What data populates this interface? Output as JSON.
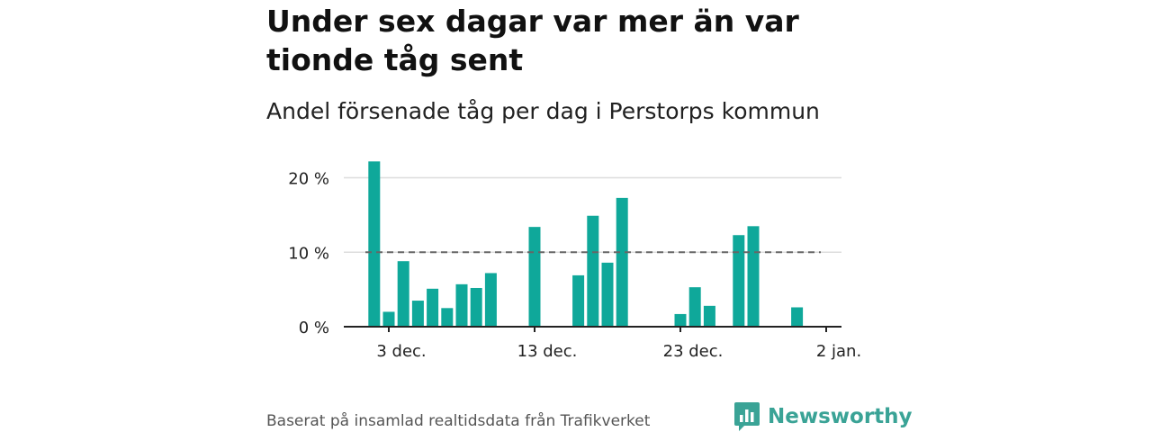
{
  "header": {
    "title": "Under sex dagar var mer än var tionde tåg sent",
    "subtitle": "Andel försenade tåg per dag i Perstorps kommun"
  },
  "footer": {
    "source": "Baserat på insamlad realtidsdata från Trafikverket",
    "brand": "Newsworthy"
  },
  "colors": {
    "bar": "#0fa89a",
    "reference_line": "#666666",
    "grid": "#dddddd",
    "brand": "#3aa396"
  },
  "icons": {
    "brand_logo": "chat-bubble-bar-chart-icon"
  },
  "chart_data": {
    "type": "bar",
    "x_unit": "day",
    "x": [
      "2023-12-02",
      "2023-12-03",
      "2023-12-04",
      "2023-12-05",
      "2023-12-06",
      "2023-12-07",
      "2023-12-08",
      "2023-12-09",
      "2023-12-10",
      "2023-12-11",
      "2023-12-12",
      "2023-12-13",
      "2023-12-14",
      "2023-12-15",
      "2023-12-16",
      "2023-12-17",
      "2023-12-18",
      "2023-12-19",
      "2023-12-20",
      "2023-12-21",
      "2023-12-22",
      "2023-12-23",
      "2023-12-24",
      "2023-12-25",
      "2023-12-26",
      "2023-12-27",
      "2023-12-28",
      "2023-12-29",
      "2023-12-30",
      "2023-12-31"
    ],
    "values": [
      22.2,
      2.0,
      8.8,
      3.5,
      5.1,
      2.5,
      5.7,
      5.2,
      7.2,
      0,
      0,
      13.4,
      0,
      0,
      6.9,
      14.9,
      8.6,
      17.3,
      0,
      0,
      0,
      1.7,
      5.3,
      2.8,
      0,
      12.3,
      13.5,
      0,
      0,
      2.6
    ],
    "ylim": [
      0,
      22
    ],
    "yticks": [
      0,
      10,
      20
    ],
    "ytick_labels": [
      "0 %",
      "10 %",
      "20 %"
    ],
    "xticks": [
      "2023-12-03",
      "2023-12-13",
      "2023-12-23",
      "2024-01-02"
    ],
    "xtick_labels": [
      "3 dec.",
      "13 dec.",
      "23 dec.",
      "2 jan."
    ],
    "reference_line": {
      "value": 10,
      "style": "dashed"
    },
    "grid": true,
    "xlabel": "",
    "ylabel": ""
  }
}
